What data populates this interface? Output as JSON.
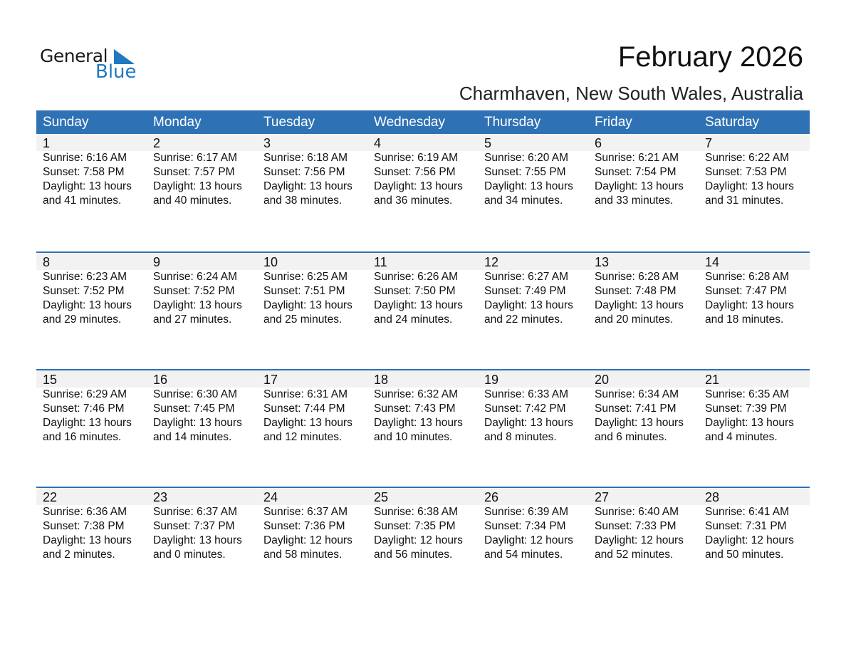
{
  "logo": {
    "line1": "General",
    "line2": "Blue"
  },
  "title": "February 2026",
  "location": "Charmhaven, New South Wales, Australia",
  "colors": {
    "header": "#2e72b5",
    "date_band": "#f2f2f2",
    "logo_blue": "#1f78c0"
  },
  "weekdays": [
    "Sunday",
    "Monday",
    "Tuesday",
    "Wednesday",
    "Thursday",
    "Friday",
    "Saturday"
  ],
  "weeks": [
    [
      {
        "day": "1",
        "sunrise": "Sunrise: 6:16 AM",
        "sunset": "Sunset: 7:58 PM",
        "daylight": "Daylight: 13 hours",
        "minutes": "and 41 minutes."
      },
      {
        "day": "2",
        "sunrise": "Sunrise: 6:17 AM",
        "sunset": "Sunset: 7:57 PM",
        "daylight": "Daylight: 13 hours",
        "minutes": "and 40 minutes."
      },
      {
        "day": "3",
        "sunrise": "Sunrise: 6:18 AM",
        "sunset": "Sunset: 7:56 PM",
        "daylight": "Daylight: 13 hours",
        "minutes": "and 38 minutes."
      },
      {
        "day": "4",
        "sunrise": "Sunrise: 6:19 AM",
        "sunset": "Sunset: 7:56 PM",
        "daylight": "Daylight: 13 hours",
        "minutes": "and 36 minutes."
      },
      {
        "day": "5",
        "sunrise": "Sunrise: 6:20 AM",
        "sunset": "Sunset: 7:55 PM",
        "daylight": "Daylight: 13 hours",
        "minutes": "and 34 minutes."
      },
      {
        "day": "6",
        "sunrise": "Sunrise: 6:21 AM",
        "sunset": "Sunset: 7:54 PM",
        "daylight": "Daylight: 13 hours",
        "minutes": "and 33 minutes."
      },
      {
        "day": "7",
        "sunrise": "Sunrise: 6:22 AM",
        "sunset": "Sunset: 7:53 PM",
        "daylight": "Daylight: 13 hours",
        "minutes": "and 31 minutes."
      }
    ],
    [
      {
        "day": "8",
        "sunrise": "Sunrise: 6:23 AM",
        "sunset": "Sunset: 7:52 PM",
        "daylight": "Daylight: 13 hours",
        "minutes": "and 29 minutes."
      },
      {
        "day": "9",
        "sunrise": "Sunrise: 6:24 AM",
        "sunset": "Sunset: 7:52 PM",
        "daylight": "Daylight: 13 hours",
        "minutes": "and 27 minutes."
      },
      {
        "day": "10",
        "sunrise": "Sunrise: 6:25 AM",
        "sunset": "Sunset: 7:51 PM",
        "daylight": "Daylight: 13 hours",
        "minutes": "and 25 minutes."
      },
      {
        "day": "11",
        "sunrise": "Sunrise: 6:26 AM",
        "sunset": "Sunset: 7:50 PM",
        "daylight": "Daylight: 13 hours",
        "minutes": "and 24 minutes."
      },
      {
        "day": "12",
        "sunrise": "Sunrise: 6:27 AM",
        "sunset": "Sunset: 7:49 PM",
        "daylight": "Daylight: 13 hours",
        "minutes": "and 22 minutes."
      },
      {
        "day": "13",
        "sunrise": "Sunrise: 6:28 AM",
        "sunset": "Sunset: 7:48 PM",
        "daylight": "Daylight: 13 hours",
        "minutes": "and 20 minutes."
      },
      {
        "day": "14",
        "sunrise": "Sunrise: 6:28 AM",
        "sunset": "Sunset: 7:47 PM",
        "daylight": "Daylight: 13 hours",
        "minutes": "and 18 minutes."
      }
    ],
    [
      {
        "day": "15",
        "sunrise": "Sunrise: 6:29 AM",
        "sunset": "Sunset: 7:46 PM",
        "daylight": "Daylight: 13 hours",
        "minutes": "and 16 minutes."
      },
      {
        "day": "16",
        "sunrise": "Sunrise: 6:30 AM",
        "sunset": "Sunset: 7:45 PM",
        "daylight": "Daylight: 13 hours",
        "minutes": "and 14 minutes."
      },
      {
        "day": "17",
        "sunrise": "Sunrise: 6:31 AM",
        "sunset": "Sunset: 7:44 PM",
        "daylight": "Daylight: 13 hours",
        "minutes": "and 12 minutes."
      },
      {
        "day": "18",
        "sunrise": "Sunrise: 6:32 AM",
        "sunset": "Sunset: 7:43 PM",
        "daylight": "Daylight: 13 hours",
        "minutes": "and 10 minutes."
      },
      {
        "day": "19",
        "sunrise": "Sunrise: 6:33 AM",
        "sunset": "Sunset: 7:42 PM",
        "daylight": "Daylight: 13 hours",
        "minutes": "and 8 minutes."
      },
      {
        "day": "20",
        "sunrise": "Sunrise: 6:34 AM",
        "sunset": "Sunset: 7:41 PM",
        "daylight": "Daylight: 13 hours",
        "minutes": "and 6 minutes."
      },
      {
        "day": "21",
        "sunrise": "Sunrise: 6:35 AM",
        "sunset": "Sunset: 7:39 PM",
        "daylight": "Daylight: 13 hours",
        "minutes": "and 4 minutes."
      }
    ],
    [
      {
        "day": "22",
        "sunrise": "Sunrise: 6:36 AM",
        "sunset": "Sunset: 7:38 PM",
        "daylight": "Daylight: 13 hours",
        "minutes": "and 2 minutes."
      },
      {
        "day": "23",
        "sunrise": "Sunrise: 6:37 AM",
        "sunset": "Sunset: 7:37 PM",
        "daylight": "Daylight: 13 hours",
        "minutes": "and 0 minutes."
      },
      {
        "day": "24",
        "sunrise": "Sunrise: 6:37 AM",
        "sunset": "Sunset: 7:36 PM",
        "daylight": "Daylight: 12 hours",
        "minutes": "and 58 minutes."
      },
      {
        "day": "25",
        "sunrise": "Sunrise: 6:38 AM",
        "sunset": "Sunset: 7:35 PM",
        "daylight": "Daylight: 12 hours",
        "minutes": "and 56 minutes."
      },
      {
        "day": "26",
        "sunrise": "Sunrise: 6:39 AM",
        "sunset": "Sunset: 7:34 PM",
        "daylight": "Daylight: 12 hours",
        "minutes": "and 54 minutes."
      },
      {
        "day": "27",
        "sunrise": "Sunrise: 6:40 AM",
        "sunset": "Sunset: 7:33 PM",
        "daylight": "Daylight: 12 hours",
        "minutes": "and 52 minutes."
      },
      {
        "day": "28",
        "sunrise": "Sunrise: 6:41 AM",
        "sunset": "Sunset: 7:31 PM",
        "daylight": "Daylight: 12 hours",
        "minutes": "and 50 minutes."
      }
    ]
  ]
}
